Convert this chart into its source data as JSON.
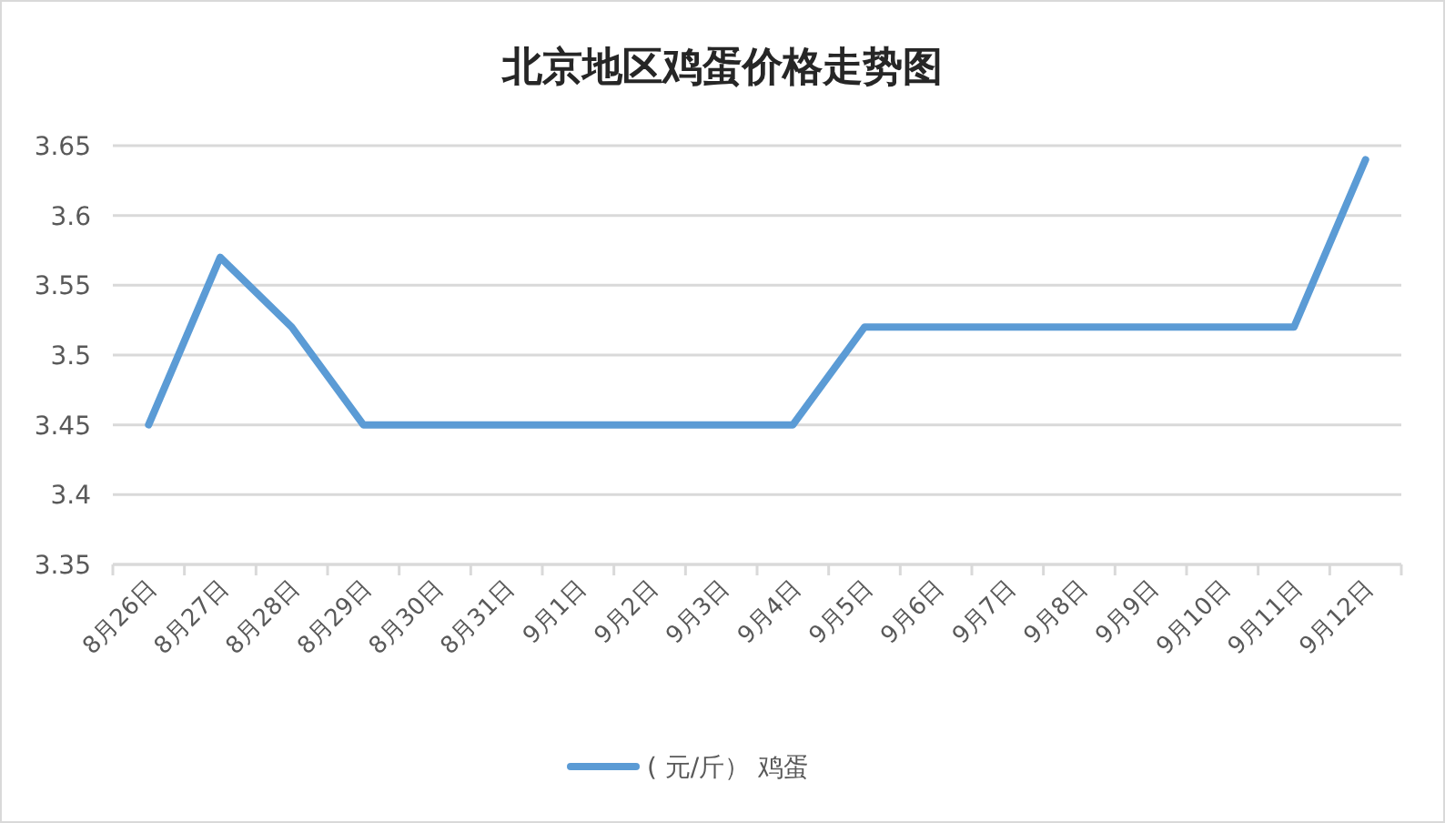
{
  "chart_data": {
    "type": "line",
    "title": "北京地区鸡蛋价格走势图",
    "categories": [
      "8月26日",
      "8月27日",
      "8月28日",
      "8月29日",
      "8月30日",
      "8月31日",
      "9月1日",
      "9月2日",
      "9月3日",
      "9月4日",
      "9月5日",
      "9月6日",
      "9月7日",
      "9月8日",
      "9月9日",
      "9月10日",
      "9月11日",
      "9月12日"
    ],
    "series": [
      {
        "name": "( 元/斤） 鸡蛋",
        "color": "#5b9bd5",
        "values": [
          3.45,
          3.57,
          3.52,
          3.45,
          3.45,
          3.45,
          3.45,
          3.45,
          3.45,
          3.45,
          3.52,
          3.52,
          3.52,
          3.52,
          3.52,
          3.52,
          3.52,
          3.64
        ]
      }
    ],
    "ylim": [
      3.35,
      3.65
    ],
    "yticks": [
      3.35,
      3.4,
      3.45,
      3.5,
      3.55,
      3.6,
      3.65
    ],
    "grid": "y",
    "legend": "bottom"
  }
}
